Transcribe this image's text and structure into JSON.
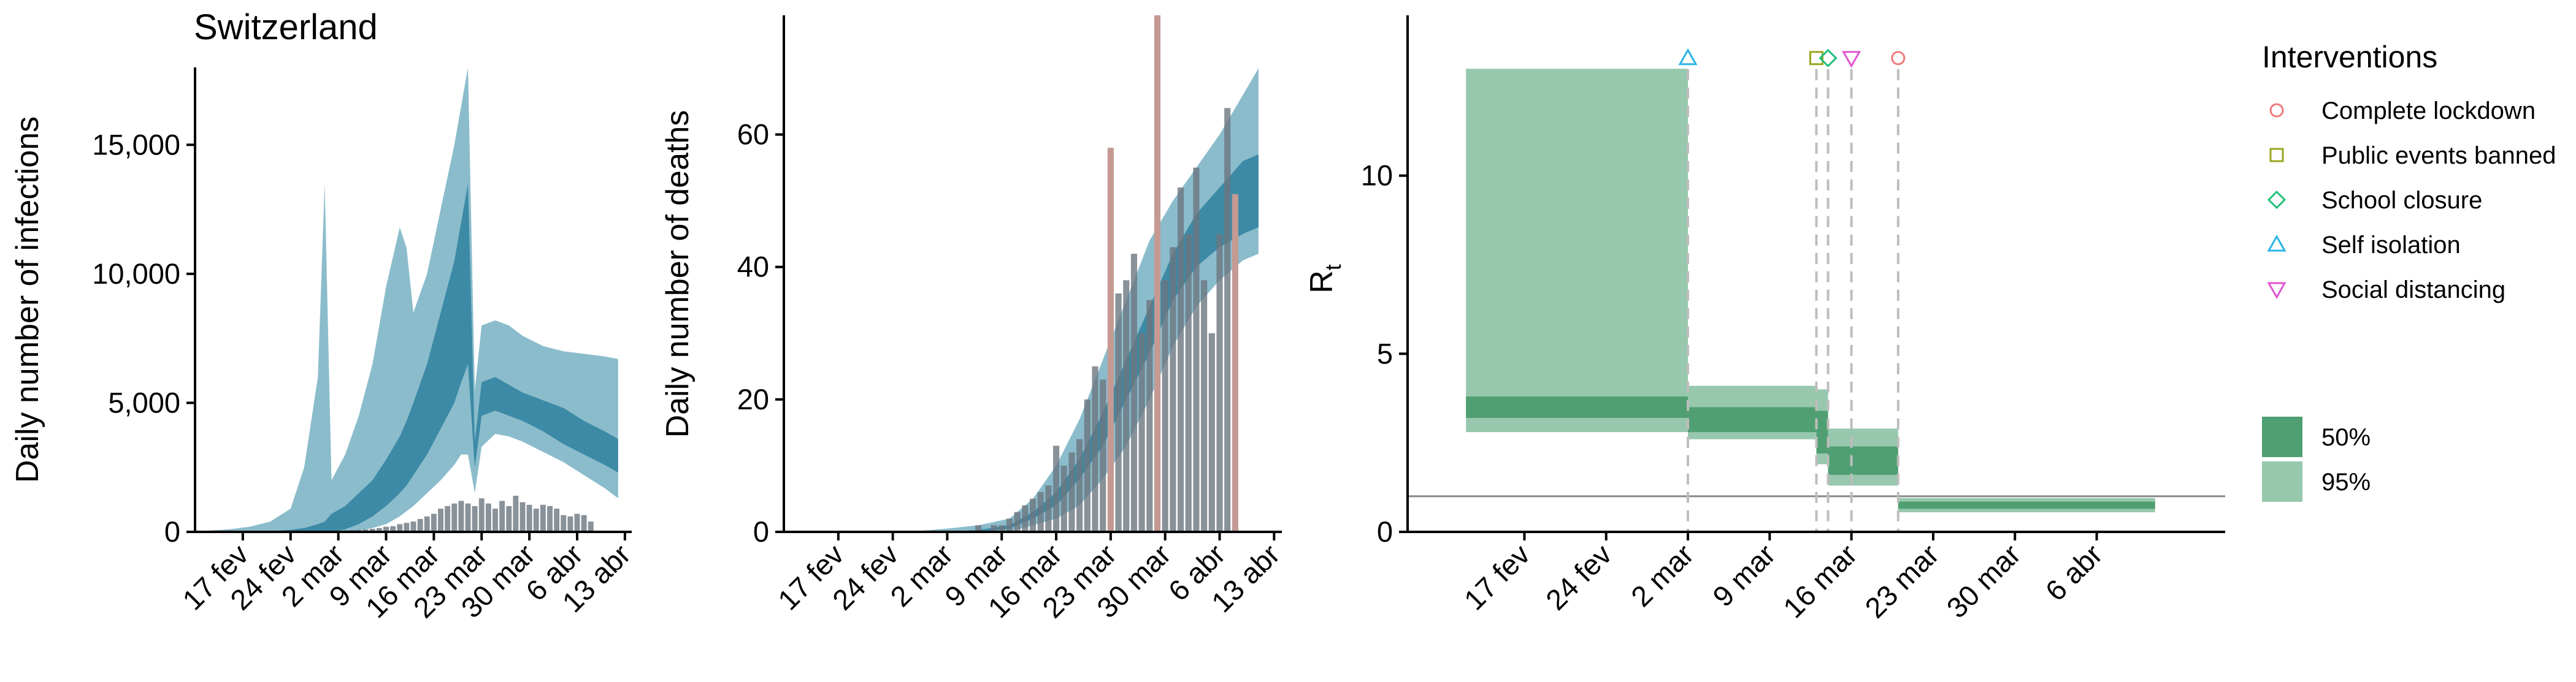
{
  "figure_title": "Switzerland",
  "colors": {
    "outer_band": "#8bbccc",
    "inner_band": "#3c8aa6",
    "observed_bar": "#6b7680",
    "highlight_bar": "#c49a93",
    "rt_band_95": "#97c8ad",
    "rt_band_50": "#509f72",
    "threshold_line": "#888888",
    "marker_lockdown": "#f07878",
    "marker_public_events": "#9aa520",
    "marker_school": "#1fbf7a",
    "marker_self_isolation": "#27b4e8",
    "marker_social_distancing": "#e055d2"
  },
  "chart_data": [
    {
      "type": "area",
      "title": "Switzerland",
      "xlabel": "",
      "ylabel": "Daily number of infections",
      "ylim": [
        0,
        18000
      ],
      "x_ticks": [
        "17 fev",
        "24 fev",
        "2 mar",
        "9 mar",
        "16 mar",
        "23 mar",
        "30 mar",
        "6 abr",
        "13 abr"
      ],
      "y_ticks": [
        "0",
        "5,000",
        "10,000",
        "15,000"
      ],
      "y_tick_values": [
        0,
        5000,
        10000,
        15000
      ],
      "x": [
        "2020-02-12",
        "2020-02-15",
        "2020-02-18",
        "2020-02-21",
        "2020-02-24",
        "2020-02-26",
        "2020-02-28",
        "2020-02-29",
        "2020-03-01",
        "2020-03-03",
        "2020-03-05",
        "2020-03-07",
        "2020-03-09",
        "2020-03-11",
        "2020-03-12",
        "2020-03-13",
        "2020-03-15",
        "2020-03-17",
        "2020-03-19",
        "2020-03-20",
        "2020-03-21",
        "2020-03-22",
        "2020-03-23",
        "2020-03-25",
        "2020-03-27",
        "2020-03-29",
        "2020-04-01",
        "2020-04-04",
        "2020-04-07",
        "2020-04-10",
        "2020-04-12"
      ],
      "series": [
        {
          "band": "95%",
          "lower": [
            0,
            0,
            0,
            0,
            0,
            0,
            0,
            0,
            0,
            0,
            50,
            150,
            300,
            600,
            800,
            1000,
            1500,
            2000,
            2600,
            3000,
            3000,
            1500,
            3300,
            3800,
            3700,
            3500,
            3100,
            2700,
            2200,
            1700,
            1300
          ],
          "upper": [
            50,
            100,
            200,
            400,
            900,
            2500,
            6000,
            13500,
            2000,
            3000,
            4500,
            6500,
            9500,
            11800,
            11000,
            8500,
            10000,
            12500,
            15000,
            16500,
            18000,
            5500,
            8000,
            8200,
            8000,
            7600,
            7200,
            7000,
            6900,
            6800,
            6700
          ]
        },
        {
          "band": "50%",
          "lower": [
            0,
            0,
            0,
            0,
            0,
            0,
            0,
            0,
            0,
            100,
            300,
            600,
            1000,
            1500,
            1800,
            2200,
            3000,
            4000,
            5000,
            5800,
            6500,
            2500,
            4500,
            4700,
            4500,
            4300,
            3900,
            3400,
            3000,
            2600,
            2300
          ],
          "upper": [
            0,
            0,
            10,
            30,
            80,
            150,
            300,
            400,
            700,
            1000,
            1500,
            2000,
            2800,
            3700,
            4300,
            5000,
            6500,
            8500,
            10500,
            12000,
            13500,
            3500,
            5800,
            6000,
            5700,
            5400,
            5100,
            4800,
            4300,
            3900,
            3600
          ]
        }
      ],
      "bars": {
        "start_date": "2020-02-25",
        "values": [
          5,
          8,
          10,
          20,
          30,
          40,
          50,
          60,
          70,
          80,
          100,
          120,
          150,
          200,
          220,
          300,
          350,
          400,
          500,
          600,
          700,
          900,
          1000,
          1100,
          1200,
          1100,
          1000,
          1300,
          1100,
          900,
          1200,
          1000,
          1400,
          1150,
          1050,
          900,
          1050,
          1000,
          900,
          650,
          600,
          700,
          650,
          400
        ]
      }
    },
    {
      "type": "area",
      "title": "",
      "xlabel": "",
      "ylabel": "Daily number of deaths",
      "ylim": [
        0,
        78
      ],
      "x_ticks": [
        "17 fev",
        "24 fev",
        "2 mar",
        "9 mar",
        "16 mar",
        "23 mar",
        "30 mar",
        "6 abr",
        "13 abr"
      ],
      "y_ticks": [
        "0",
        "20",
        "40",
        "60"
      ],
      "y_tick_values": [
        0,
        20,
        40,
        60
      ],
      "x": [
        "2020-02-26",
        "2020-03-02",
        "2020-03-06",
        "2020-03-10",
        "2020-03-13",
        "2020-03-16",
        "2020-03-19",
        "2020-03-22",
        "2020-03-25",
        "2020-03-28",
        "2020-03-31",
        "2020-04-03",
        "2020-04-06",
        "2020-04-09",
        "2020-04-11"
      ],
      "series": [
        {
          "band": "95%",
          "lower": [
            0,
            0,
            0,
            0,
            1,
            2,
            4,
            8,
            13,
            20,
            28,
            34,
            38,
            41,
            42
          ],
          "upper": [
            0,
            0.5,
            1,
            2,
            5,
            10,
            17,
            26,
            35,
            44,
            50,
            55,
            60,
            66,
            70
          ]
        },
        {
          "band": "50%",
          "lower": [
            0,
            0,
            0,
            0.5,
            2,
            4,
            8,
            13,
            20,
            27,
            35,
            40,
            43,
            45,
            46
          ],
          "upper": [
            0,
            0,
            0.3,
            1,
            3,
            6,
            11,
            18,
            26,
            34,
            42,
            48,
            52,
            56,
            57
          ]
        }
      ],
      "bars": {
        "start_date": "2020-03-05",
        "values": [
          0,
          1,
          0,
          1,
          1,
          2,
          3,
          4,
          5,
          6,
          7,
          13,
          10,
          12,
          14,
          20,
          25,
          23,
          58,
          36,
          38,
          42,
          30,
          35,
          78,
          38,
          43,
          52,
          45,
          55,
          38,
          30,
          45,
          64,
          51
        ],
        "highlight_indices": [
          18,
          24,
          34
        ]
      }
    },
    {
      "type": "area",
      "title": "",
      "xlabel": "",
      "ylabel": "R",
      "ylabel_subscript": "t",
      "ylim": [
        0,
        14.5
      ],
      "x_ticks": [
        "17 fev",
        "24 fev",
        "2 mar",
        "9 mar",
        "16 mar",
        "23 mar",
        "30 mar",
        "6 abr"
      ],
      "y_ticks": [
        "0",
        "5",
        "10"
      ],
      "y_tick_values": [
        0,
        5,
        10
      ],
      "threshold": 1,
      "steps": [
        {
          "start": "2020-02-12",
          "end": "2020-03-02",
          "lo95": 2.8,
          "hi95": 13.0,
          "lo50": 3.2,
          "hi50": 3.8
        },
        {
          "start": "2020-03-02",
          "end": "2020-03-13",
          "lo95": 2.6,
          "hi95": 4.1,
          "lo50": 2.8,
          "hi50": 3.5
        },
        {
          "start": "2020-03-13",
          "end": "2020-03-14",
          "lo95": 1.9,
          "hi95": 4.0,
          "lo50": 2.2,
          "hi50": 3.4
        },
        {
          "start": "2020-03-14",
          "end": "2020-03-20",
          "lo95": 1.3,
          "hi95": 2.9,
          "lo50": 1.6,
          "hi50": 2.4
        },
        {
          "start": "2020-03-20",
          "end": "2020-04-11",
          "lo95": 0.55,
          "hi95": 0.95,
          "lo50": 0.65,
          "hi50": 0.85
        }
      ],
      "interventions": [
        {
          "name": "Self isolation",
          "date": "2020-03-02",
          "symbol": "triangle-up",
          "color_key": "marker_self_isolation"
        },
        {
          "name": "Public events banned",
          "date": "2020-03-13",
          "symbol": "square",
          "color_key": "marker_public_events"
        },
        {
          "name": "School closure",
          "date": "2020-03-14",
          "symbol": "diamond",
          "color_key": "marker_school"
        },
        {
          "name": "Social distancing",
          "date": "2020-03-16",
          "symbol": "triangle-down",
          "color_key": "marker_social_distancing"
        },
        {
          "name": "Complete lockdown",
          "date": "2020-03-20",
          "symbol": "circle",
          "color_key": "marker_lockdown"
        }
      ],
      "legend": {
        "title": "Interventions",
        "placement": "right",
        "items": [
          {
            "label": "Complete lockdown",
            "symbol": "circle",
            "color_key": "marker_lockdown"
          },
          {
            "label": "Public events banned",
            "symbol": "square",
            "color_key": "marker_public_events"
          },
          {
            "label": "School closure",
            "symbol": "diamond",
            "color_key": "marker_school"
          },
          {
            "label": "Self isolation",
            "symbol": "triangle-up",
            "color_key": "marker_self_isolation"
          },
          {
            "label": "Social distancing",
            "symbol": "triangle-down",
            "color_key": "marker_social_distancing"
          }
        ],
        "bands": [
          {
            "label": "50%",
            "color_key": "rt_band_50"
          },
          {
            "label": "95%",
            "color_key": "rt_band_95"
          }
        ]
      }
    }
  ]
}
